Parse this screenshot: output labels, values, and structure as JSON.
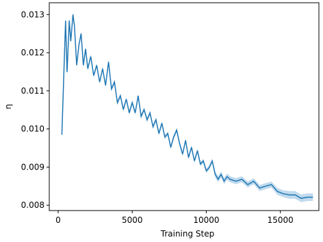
{
  "chart_data": {
    "type": "line",
    "xlabel": "Training Step",
    "ylabel": "η",
    "x": [
      250,
      500,
      600,
      750,
      850,
      1000,
      1100,
      1250,
      1400,
      1550,
      1700,
      1850,
      2000,
      2200,
      2400,
      2600,
      2800,
      3000,
      3200,
      3400,
      3600,
      3800,
      4000,
      4200,
      4400,
      4600,
      4800,
      5000,
      5200,
      5400,
      5600,
      5800,
      6000,
      6200,
      6400,
      6600,
      6800,
      7000,
      7200,
      7400,
      7600,
      7800,
      8000,
      8200,
      8400,
      8600,
      8800,
      9000,
      9200,
      9400,
      9600,
      9800,
      10000,
      10200,
      10400,
      10600,
      10800,
      11000,
      11200,
      11400,
      11600,
      12000,
      12400,
      12800,
      13200,
      13600,
      14000,
      14400,
      14800,
      15200,
      15600,
      16000,
      16400,
      16800,
      17200
    ],
    "series": [
      {
        "color": "#1f77b4",
        "band_color": "#a6cbe6",
        "values": [
          0.00985,
          0.01284,
          0.01149,
          0.01284,
          0.0123,
          0.013,
          0.0127,
          0.01167,
          0.0122,
          0.0125,
          0.01167,
          0.0121,
          0.01158,
          0.0119,
          0.0114,
          0.01167,
          0.01123,
          0.01158,
          0.01114,
          0.01176,
          0.01105,
          0.01123,
          0.01069,
          0.01087,
          0.01051,
          0.01078,
          0.01042,
          0.01069,
          0.01042,
          0.01087,
          0.01033,
          0.01051,
          0.01024,
          0.01042,
          0.01006,
          0.01024,
          0.00988,
          0.01015,
          0.00979,
          0.00988,
          0.00952,
          0.00979,
          0.00997,
          0.00961,
          0.00934,
          0.0097,
          0.00925,
          0.00952,
          0.00916,
          0.00943,
          0.00908,
          0.00916,
          0.0089,
          0.00899,
          0.00916,
          0.00881,
          0.00868,
          0.00881,
          0.00863,
          0.00875,
          0.00868,
          0.00863,
          0.00868,
          0.00854,
          0.00863,
          0.00845,
          0.0085,
          0.00854,
          0.00836,
          0.0083,
          0.00827,
          0.00827,
          0.00818,
          0.00821,
          0.00821
        ],
        "errors": [
          6e-05,
          6e-05,
          6e-05,
          6e-05,
          6e-05,
          6e-05,
          6e-05,
          6e-05,
          6e-05,
          6e-05,
          6e-05,
          6e-05,
          6e-05,
          6e-05,
          6e-05,
          6e-05,
          6e-05,
          6e-05,
          6e-05,
          6e-05,
          6e-05,
          6e-05,
          6e-05,
          6e-05,
          6e-05,
          6e-05,
          6e-05,
          6e-05,
          6e-05,
          6e-05,
          6e-05,
          6e-05,
          6e-05,
          6e-05,
          6e-05,
          6e-05,
          6e-05,
          6e-05,
          6e-05,
          6e-05,
          6e-05,
          6e-05,
          6e-05,
          6e-05,
          6e-05,
          6e-05,
          6e-05,
          6e-05,
          6e-05,
          6e-05,
          6e-05,
          6e-05,
          6e-05,
          6e-05,
          6e-05,
          8e-05,
          8e-05,
          8e-05,
          8e-05,
          8e-05,
          8e-05,
          8e-05,
          8e-05,
          8e-05,
          8e-05,
          8e-05,
          8e-05,
          8e-05,
          9e-05,
          9e-05,
          0.0001,
          0.0001,
          0.0001,
          0.0001,
          0.0001
        ]
      }
    ],
    "xlim": [
      -600,
      17600
    ],
    "xticks": [
      0,
      5000,
      10000,
      15000
    ],
    "ylim": [
      0.00786,
      0.01331
    ],
    "yticks": [
      0.008,
      0.009,
      {
        "value": 0.01,
        "label": "0.010"
      },
      0.011,
      0.012,
      0.013
    ]
  }
}
